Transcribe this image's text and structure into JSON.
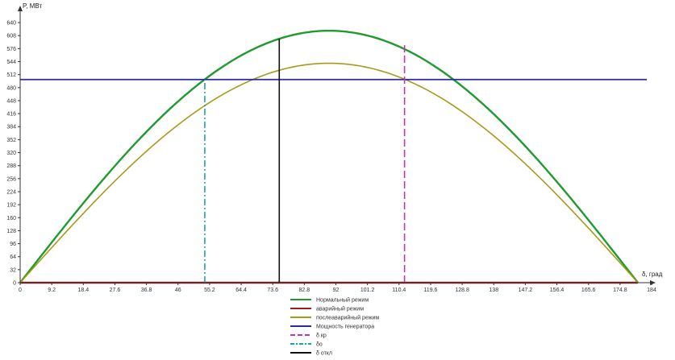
{
  "chart_data": {
    "type": "line",
    "ylabel": "P, МВт",
    "xlabel": "δ, град",
    "xlim": [
      0,
      184
    ],
    "ylim": [
      0,
      656
    ],
    "x_ticks": [
      "0",
      "9.2",
      "18.4",
      "27.6",
      "36.8",
      "46",
      "55.2",
      "64.4",
      "73.6",
      "82.8",
      "92",
      "101.2",
      "110.4",
      "119.6",
      "128.8",
      "138",
      "147.2",
      "156.4",
      "165.6",
      "174.8",
      "184"
    ],
    "y_ticks": [
      "0",
      "32",
      "64",
      "96",
      "128",
      "160",
      "192",
      "224",
      "256",
      "288",
      "320",
      "352",
      "384",
      "416",
      "448",
      "480",
      "512",
      "544",
      "576",
      "608",
      "640"
    ],
    "grid": false,
    "legend_position": "bottom-center",
    "series": [
      {
        "name": "Нормальный режим",
        "kind": "sine",
        "amplitude": 620,
        "x_start": 0,
        "x_end": 180,
        "color": "#1f9a2f",
        "style": "solid"
      },
      {
        "name": "аварийный режим",
        "kind": "constant",
        "value": 0,
        "x_start": 0,
        "x_end": 180,
        "color": "#a01a1a",
        "style": "solid"
      },
      {
        "name": "послеаварийный режим",
        "kind": "sine",
        "amplitude": 540,
        "x_start": 0,
        "x_end": 180,
        "color": "#a89a1a",
        "style": "solid"
      },
      {
        "name": "Мощность генератора",
        "kind": "hline",
        "value": 500,
        "color": "#2a2a9a",
        "style": "solid"
      },
      {
        "name": "δ кр",
        "kind": "vline",
        "x": 112,
        "y_top": 592,
        "color": "#cc33aa",
        "style": "dash"
      },
      {
        "name": "δо",
        "kind": "vline",
        "x": 53.8,
        "y_top": 500,
        "color": "#1aa6a6",
        "style": "dashdot"
      },
      {
        "name": "δ откл",
        "kind": "vline",
        "x": 75.5,
        "y_top": 600,
        "color": "#111111",
        "style": "solid"
      }
    ]
  }
}
